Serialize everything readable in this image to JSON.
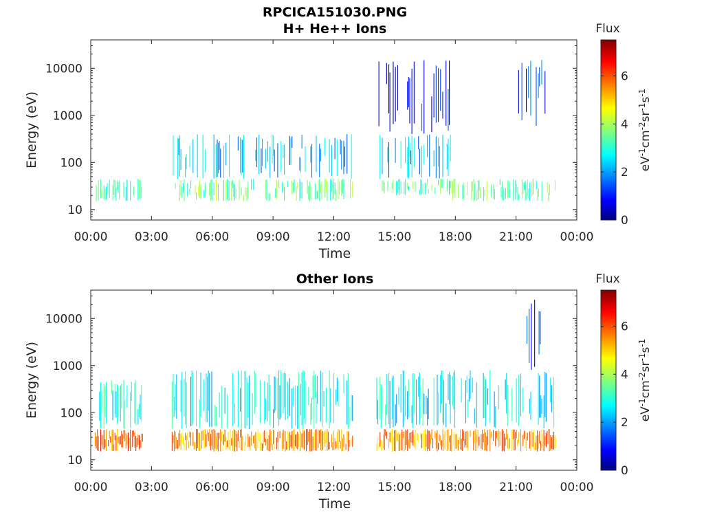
{
  "figure_title": "RPCICA151030.PNG",
  "chart_data": [
    {
      "type": "heatmap",
      "title": "H+ He++ Ions",
      "xlabel": "Time",
      "ylabel": "Energy (eV)",
      "x_ticks": [
        "00:00",
        "03:00",
        "06:00",
        "09:00",
        "12:00",
        "15:00",
        "18:00",
        "21:00",
        "00:00"
      ],
      "x_range_hours": [
        0,
        24
      ],
      "y_scale": "log",
      "y_range": [
        6,
        40000
      ],
      "y_ticks": [
        10,
        100,
        1000,
        10000
      ],
      "y_tick_labels": [
        "10",
        "100",
        "1000",
        "10000"
      ],
      "colorbar": {
        "title": "Flux",
        "label": "eV-1cm-2sr-1s-1",
        "ticks": [
          0,
          2,
          4,
          6
        ],
        "range": [
          0,
          7.5
        ],
        "colormap": "jet"
      },
      "data_gaps_hours": [
        [
          2.55,
          4.0
        ],
        [
          12.95,
          14.1
        ],
        [
          23.0,
          24.0
        ]
      ],
      "regions": [
        {
          "t": [
            0.2,
            2.55
          ],
          "e": [
            15,
            45
          ],
          "flux": 3.3
        },
        {
          "t": [
            4.0,
            12.95
          ],
          "e": [
            15,
            45
          ],
          "flux": 3.6
        },
        {
          "t": [
            4.0,
            12.95
          ],
          "e": [
            45,
            400
          ],
          "flux": 2.3
        },
        {
          "t": [
            14.1,
            17.75
          ],
          "e": [
            20,
            45
          ],
          "flux": 3.4
        },
        {
          "t": [
            14.1,
            17.75
          ],
          "e": [
            45,
            400
          ],
          "flux": 2.2
        },
        {
          "t": [
            14.1,
            17.75
          ],
          "e": [
            400,
            15000
          ],
          "flux": 1.2
        },
        {
          "t": [
            17.75,
            23.0
          ],
          "e": [
            15,
            45
          ],
          "flux": 3.5
        },
        {
          "t": [
            21.0,
            22.5
          ],
          "e": [
            400,
            15000
          ],
          "flux": 1.4
        }
      ]
    },
    {
      "type": "heatmap",
      "title": "Other Ions",
      "xlabel": "Time",
      "ylabel": "Energy (eV)",
      "x_ticks": [
        "00:00",
        "03:00",
        "06:00",
        "09:00",
        "12:00",
        "15:00",
        "18:00",
        "21:00",
        "00:00"
      ],
      "x_range_hours": [
        0,
        24
      ],
      "y_scale": "log",
      "y_range": [
        6,
        40000
      ],
      "y_ticks": [
        10,
        100,
        1000,
        10000
      ],
      "y_tick_labels": [
        "10",
        "100",
        "1000",
        "10000"
      ],
      "colorbar": {
        "title": "Flux",
        "label": "eV-1cm-2sr-1s-1",
        "ticks": [
          0,
          2,
          4,
          6
        ],
        "range": [
          0,
          7.5
        ],
        "colormap": "jet"
      },
      "data_gaps_hours": [
        [
          2.55,
          4.0
        ],
        [
          12.95,
          14.1
        ],
        [
          23.0,
          24.0
        ]
      ],
      "regions": [
        {
          "t": [
            0.2,
            2.55
          ],
          "e": [
            15,
            45
          ],
          "flux": 5.7
        },
        {
          "t": [
            0.2,
            2.55
          ],
          "e": [
            45,
            500
          ],
          "flux": 3.0
        },
        {
          "t": [
            4.0,
            12.95
          ],
          "e": [
            15,
            45
          ],
          "flux": 5.4
        },
        {
          "t": [
            4.0,
            12.95
          ],
          "e": [
            45,
            800
          ],
          "flux": 2.8
        },
        {
          "t": [
            14.1,
            23.0
          ],
          "e": [
            15,
            45
          ],
          "flux": 5.5
        },
        {
          "t": [
            14.1,
            23.0
          ],
          "e": [
            45,
            800
          ],
          "flux": 2.8
        },
        {
          "t": [
            21.3,
            22.3
          ],
          "e": [
            800,
            25000
          ],
          "flux": 1.4
        }
      ]
    }
  ]
}
